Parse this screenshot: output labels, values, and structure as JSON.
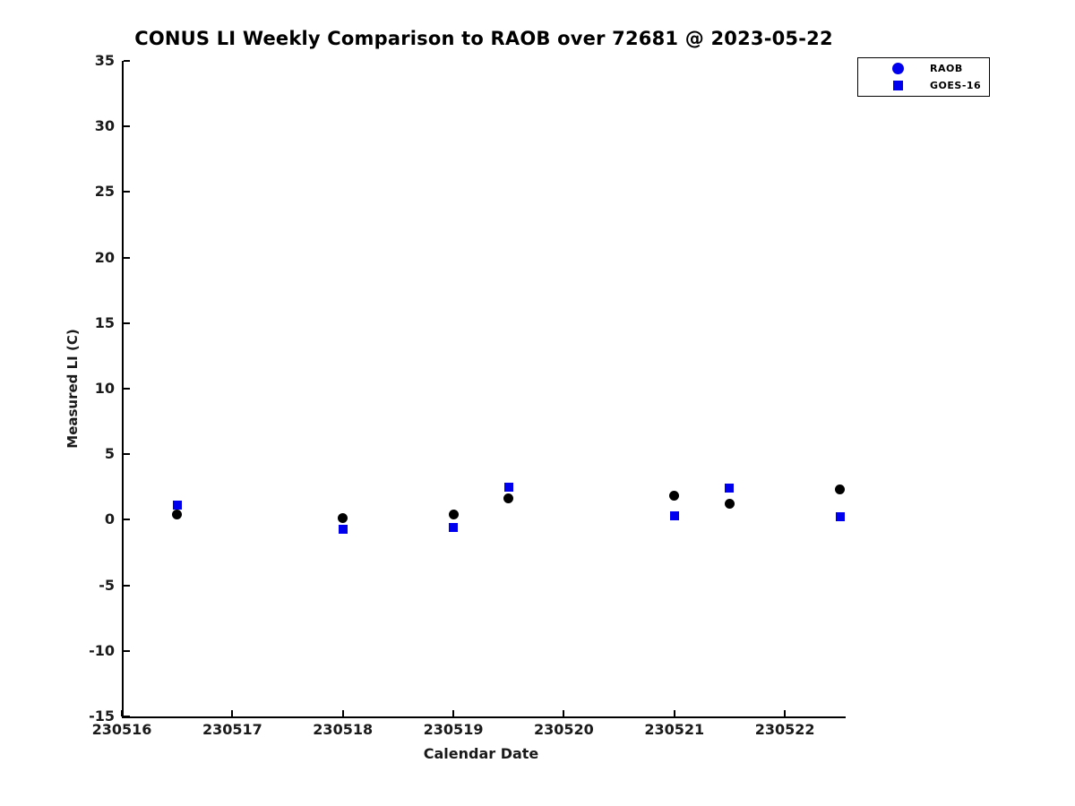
{
  "chart_data": {
    "type": "scatter",
    "title": "CONUS LI Weekly Comparison to RAOB over 72681 @ 2023-05-22",
    "xlabel": "Calendar Date",
    "ylabel": "Measured LI (C)",
    "xlim": [
      230516,
      230522.55
    ],
    "ylim": [
      -15,
      35
    ],
    "x_ticks": [
      230516,
      230517,
      230518,
      230519,
      230520,
      230521,
      230522
    ],
    "y_ticks": [
      35,
      30,
      25,
      20,
      15,
      10,
      5,
      0,
      -5,
      -10,
      -15
    ],
    "grid": false,
    "legend": {
      "position": "top-right-outside",
      "entries": [
        {
          "label": "RAOB",
          "marker": "circle",
          "color": "#0000ee"
        },
        {
          "label": "GOES-16",
          "marker": "square",
          "color": "#0000ee"
        }
      ]
    },
    "series": [
      {
        "name": "RAOB",
        "marker": "circle",
        "color": "#000000",
        "points": [
          [
            230516.5,
            0.4
          ],
          [
            230518.0,
            0.15
          ],
          [
            230519.0,
            0.4
          ],
          [
            230519.5,
            1.65
          ],
          [
            230521.0,
            1.85
          ],
          [
            230521.5,
            1.2
          ],
          [
            230522.5,
            2.3
          ]
        ]
      },
      {
        "name": "GOES-16",
        "marker": "square",
        "color": "#0000ee",
        "points": [
          [
            230516.5,
            1.1
          ],
          [
            230518.0,
            -0.7
          ],
          [
            230519.0,
            -0.6
          ],
          [
            230519.5,
            2.5
          ],
          [
            230521.0,
            0.3
          ],
          [
            230521.5,
            2.45
          ],
          [
            230522.5,
            0.25
          ]
        ]
      }
    ]
  }
}
